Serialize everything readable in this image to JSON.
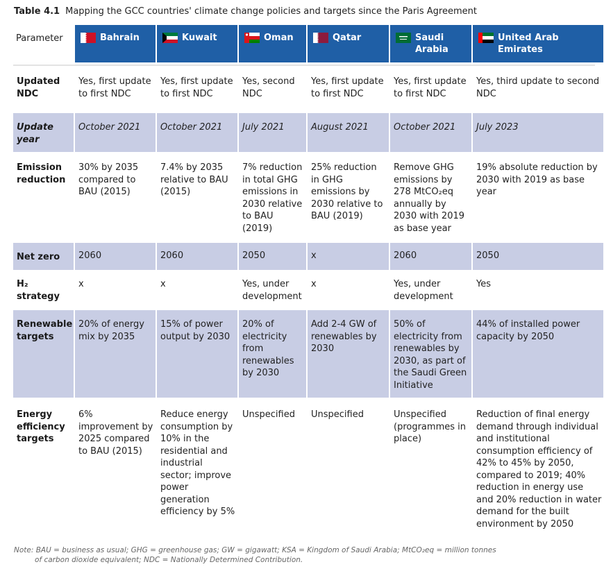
{
  "caption": {
    "number": "Table 4.1",
    "title": "Mapping the GCC countries' climate change policies and targets since the Paris Agreement"
  },
  "header": {
    "parameter_label": "Parameter",
    "countries": [
      {
        "name": "Bahrain",
        "flag": "bahrain-flag-icon"
      },
      {
        "name": "Kuwait",
        "flag": "kuwait-flag-icon"
      },
      {
        "name": "Oman",
        "flag": "oman-flag-icon"
      },
      {
        "name": "Qatar",
        "flag": "qatar-flag-icon"
      },
      {
        "name": "Saudi Arabia",
        "flag": "saudi-flag-icon"
      },
      {
        "name": "United Arab Emirates",
        "flag": "uae-flag-icon"
      }
    ]
  },
  "rows": [
    {
      "param": "Updated NDC",
      "cells": [
        "Yes, first update to first NDC",
        "Yes, first update to first NDC",
        "Yes, second NDC",
        "Yes, first update to first NDC",
        "Yes, first update to first NDC",
        "Yes, third update to second NDC"
      ]
    },
    {
      "param": "Update year",
      "cells": [
        "October 2021",
        "October 2021",
        "July 2021",
        "August 2021",
        "October 2021",
        "July 2023"
      ]
    },
    {
      "param": "Emission reduction",
      "cells": [
        "30% by 2035 compared to BAU (2015)",
        "7.4% by 2035 relative to BAU (2015)",
        "7% reduction in total GHG emissions in 2030 relative to BAU (2019)",
        "25% reduction in GHG emissions by 2030 relative to BAU (2019)",
        "Remove GHG emissions by 278 MtCO₂eq annually by 2030 with 2019 as base year",
        "19% absolute reduction by 2030 with 2019 as base year"
      ]
    },
    {
      "param": "Net zero",
      "cells": [
        "2060",
        "2060",
        "2050",
        "x",
        "2060",
        "2050"
      ]
    },
    {
      "param": "H₂ strategy",
      "cells": [
        "x",
        "x",
        "Yes, under development",
        "x",
        "Yes, under development",
        "Yes"
      ]
    },
    {
      "param": "Renewable targets",
      "cells": [
        "20% of energy mix by 2035",
        "15% of power output by 2030",
        "20% of electricity from renewables by 2030",
        "Add 2-4 GW of renewables by 2030",
        "50% of electricity from renewables by 2030, as part of the Saudi Green Initiative",
        "44% of installed power capacity by 2050"
      ]
    },
    {
      "param": "Energy efficiency targets",
      "cells": [
        "6% improvement by 2025 compared to BAU (2015)",
        "Reduce energy consumption by 10% in the residential and industrial sector; improve power generation efficiency by 5%",
        "Unspecified",
        "Unspecified",
        "Unspecified (programmes in place)",
        "Reduction of final energy demand through individual and institutional consumption efficiency of 42% to 45% by 2050, compared to 2019; 40% reduction in energy use and 20% reduction in water demand for the built environment by 2050"
      ]
    }
  ],
  "note": {
    "line1": "Note: BAU = business as usual; GHG = greenhouse gas; GW = gigawatt; KSA = Kingdom of Saudi Arabia; MtCO₂eq = million tonnes",
    "line2": "of carbon dioxide equivalent; NDC = Nationally Determined Contribution."
  },
  "colors": {
    "header_blue": "#1f5fa6",
    "row_alt": "#c8cde4"
  }
}
